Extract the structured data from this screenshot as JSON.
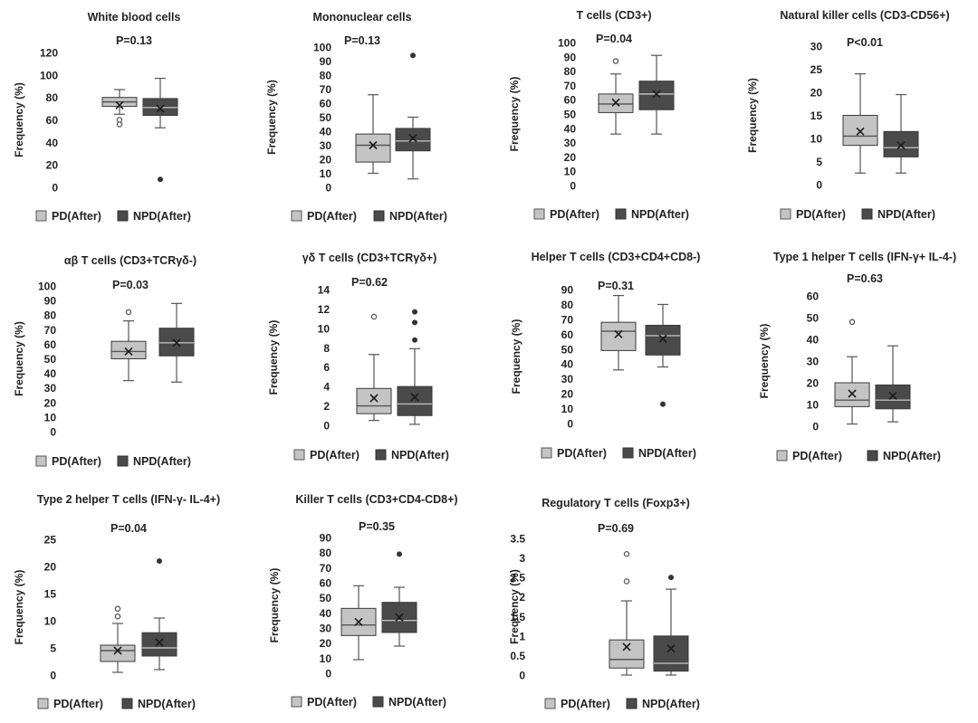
{
  "legend": {
    "pd_label": "PD(After)",
    "npd_label": "NPD(After)"
  },
  "colors": {
    "pd_fill": "#c4c4c4",
    "npd_fill": "#4a4a4a",
    "axis_text": "#222222",
    "stroke": "#555555"
  },
  "chart_data": [
    {
      "type": "boxplot",
      "title": "White blood cells",
      "pvalue": "P=0.13",
      "ylabel": "Frequency (%)",
      "ylim": [
        0,
        120
      ],
      "yticks": [
        0,
        20,
        40,
        60,
        80,
        100,
        120
      ],
      "series": [
        {
          "name": "PD(After)",
          "min": 65,
          "q1": 72,
          "median": 76,
          "q3": 80,
          "max": 87,
          "mean": 73,
          "outliers": [
            60,
            56
          ]
        },
        {
          "name": "NPD(After)",
          "min": 53,
          "q1": 64,
          "median": 71,
          "q3": 79,
          "max": 97,
          "mean": 70,
          "outliers": [
            7
          ]
        }
      ]
    },
    {
      "type": "boxplot",
      "title": "Mononuclear cells",
      "pvalue": "P=0.13",
      "ylabel": "Frequency (%)",
      "ylim": [
        0,
        100
      ],
      "yticks": [
        0,
        10,
        20,
        30,
        40,
        50,
        60,
        70,
        80,
        90,
        100
      ],
      "series": [
        {
          "name": "PD(After)",
          "min": 10,
          "q1": 18,
          "median": 30,
          "q3": 38,
          "max": 66,
          "mean": 30,
          "outliers": []
        },
        {
          "name": "NPD(After)",
          "min": 6,
          "q1": 26,
          "median": 33,
          "q3": 42,
          "max": 50,
          "mean": 35,
          "outliers": [
            94
          ]
        }
      ]
    },
    {
      "type": "boxplot",
      "title": "T cells (CD3+)",
      "pvalue": "P=0.04",
      "ylabel": "Frequency (%)",
      "ylim": [
        0,
        100
      ],
      "yticks": [
        0,
        10,
        20,
        30,
        40,
        50,
        60,
        70,
        80,
        90,
        100
      ],
      "series": [
        {
          "name": "PD(After)",
          "min": 36,
          "q1": 51,
          "median": 57,
          "q3": 64,
          "max": 78,
          "mean": 58,
          "outliers": [
            87
          ]
        },
        {
          "name": "NPD(After)",
          "min": 36,
          "q1": 53,
          "median": 64,
          "q3": 73,
          "max": 91,
          "mean": 64,
          "outliers": []
        }
      ]
    },
    {
      "type": "boxplot",
      "title": "Natural killer cells (CD3-CD56+)",
      "pvalue": "P<0.01",
      "ylabel": "Frequency (%)",
      "ylim": [
        0,
        30
      ],
      "yticks": [
        0,
        5,
        10,
        15,
        20,
        25,
        30
      ],
      "series": [
        {
          "name": "PD(After)",
          "min": 2.5,
          "q1": 8.5,
          "median": 10.5,
          "q3": 15,
          "max": 24,
          "mean": 11.5,
          "outliers": []
        },
        {
          "name": "NPD(After)",
          "min": 2.5,
          "q1": 6,
          "median": 8,
          "q3": 11.5,
          "max": 19.5,
          "mean": 8.5,
          "outliers": []
        }
      ]
    },
    {
      "type": "boxplot",
      "title": "αβ T cells (CD3+TCRγδ-)",
      "pvalue": "P=0.03",
      "ylabel": "Frequency (%)",
      "ylim": [
        0,
        100
      ],
      "yticks": [
        0,
        10,
        20,
        30,
        40,
        50,
        60,
        70,
        80,
        90,
        100
      ],
      "series": [
        {
          "name": "PD(After)",
          "min": 35,
          "q1": 50,
          "median": 55,
          "q3": 62,
          "max": 76,
          "mean": 55,
          "outliers": [
            82
          ]
        },
        {
          "name": "NPD(After)",
          "min": 34,
          "q1": 52,
          "median": 61,
          "q3": 71,
          "max": 88,
          "mean": 61,
          "outliers": []
        }
      ]
    },
    {
      "type": "boxplot",
      "title": "γδ T cells (CD3+TCRγδ+)",
      "pvalue": "P=0.62",
      "ylabel": "Frequency (%)",
      "ylim": [
        0,
        14
      ],
      "yticks": [
        0,
        2,
        4,
        6,
        8,
        10,
        12,
        14
      ],
      "series": [
        {
          "name": "PD(After)",
          "min": 0.5,
          "q1": 1.2,
          "median": 2.0,
          "q3": 3.8,
          "max": 7.3,
          "mean": 2.8,
          "outliers": [
            11.2
          ]
        },
        {
          "name": "NPD(After)",
          "min": 0.1,
          "q1": 1.0,
          "median": 2.2,
          "q3": 4.0,
          "max": 7.9,
          "mean": 2.9,
          "outliers": [
            8.8,
            10.6,
            11.7
          ]
        }
      ]
    },
    {
      "type": "boxplot",
      "title": "Helper T cells (CD3+CD4+CD8-)",
      "pvalue": "P=0.31",
      "ylabel": "Frequency (%)",
      "ylim": [
        0,
        90
      ],
      "yticks": [
        0,
        10,
        20,
        30,
        40,
        50,
        60,
        70,
        80,
        90
      ],
      "series": [
        {
          "name": "PD(After)",
          "min": 36,
          "q1": 49,
          "median": 62,
          "q3": 68,
          "max": 86,
          "mean": 60,
          "outliers": []
        },
        {
          "name": "NPD(After)",
          "min": 38,
          "q1": 46,
          "median": 59,
          "q3": 66,
          "max": 80,
          "mean": 57,
          "outliers": [
            13
          ]
        }
      ]
    },
    {
      "type": "boxplot",
      "title": "Type 1 helper T cells (IFN-γ+ IL-4-)",
      "pvalue": "P=0.63",
      "ylabel": "Frequency (%)",
      "ylim": [
        0,
        60
      ],
      "yticks": [
        0,
        10,
        20,
        30,
        40,
        50,
        60
      ],
      "series": [
        {
          "name": "PD(After)",
          "min": 1,
          "q1": 9,
          "median": 12,
          "q3": 20,
          "max": 32,
          "mean": 15,
          "outliers": [
            48
          ]
        },
        {
          "name": "NPD(After)",
          "min": 2,
          "q1": 8,
          "median": 12,
          "q3": 19,
          "max": 37,
          "mean": 14,
          "outliers": []
        }
      ]
    },
    {
      "type": "boxplot",
      "title": "Type 2 helper T cells (IFN-γ- IL-4+)",
      "pvalue": "P=0.04",
      "ylabel": "Frequency (%)",
      "ylim": [
        0,
        25
      ],
      "yticks": [
        0,
        5,
        10,
        15,
        20,
        25
      ],
      "series": [
        {
          "name": "PD(After)",
          "min": 0.5,
          "q1": 2.5,
          "median": 4.5,
          "q3": 5.5,
          "max": 9.5,
          "mean": 4.5,
          "outliers": [
            10.8,
            12.2
          ]
        },
        {
          "name": "NPD(After)",
          "min": 1,
          "q1": 3.5,
          "median": 5,
          "q3": 7.8,
          "max": 10.5,
          "mean": 6,
          "outliers": [
            21
          ]
        }
      ]
    },
    {
      "type": "boxplot",
      "title": "Killer T cells (CD3+CD4-CD8+)",
      "pvalue": "P=0.35",
      "ylabel": "Frequency (%)",
      "ylim": [
        0,
        90
      ],
      "yticks": [
        0,
        10,
        20,
        30,
        40,
        50,
        60,
        70,
        80,
        90
      ],
      "series": [
        {
          "name": "PD(After)",
          "min": 9,
          "q1": 25,
          "median": 32,
          "q3": 43,
          "max": 58,
          "mean": 34,
          "outliers": []
        },
        {
          "name": "NPD(After)",
          "min": 18,
          "q1": 27,
          "median": 35,
          "q3": 47,
          "max": 57,
          "mean": 37,
          "outliers": [
            79
          ]
        }
      ]
    },
    {
      "type": "boxplot",
      "title": "Regulatory T cells (Foxp3+)",
      "pvalue": "P=0.69",
      "ylabel": "Frequency (%)",
      "ylim": [
        0,
        3.5
      ],
      "yticks": [
        0,
        0.5,
        1,
        1.5,
        2,
        2.5,
        3,
        3.5
      ],
      "series": [
        {
          "name": "PD(After)",
          "min": 0,
          "q1": 0.18,
          "median": 0.4,
          "q3": 0.9,
          "max": 1.9,
          "mean": 0.72,
          "outliers": [
            2.4,
            3.1
          ]
        },
        {
          "name": "NPD(After)",
          "min": 0,
          "q1": 0.1,
          "median": 0.3,
          "q3": 1.0,
          "max": 2.2,
          "mean": 0.68,
          "outliers": [
            2.5
          ]
        }
      ]
    }
  ]
}
